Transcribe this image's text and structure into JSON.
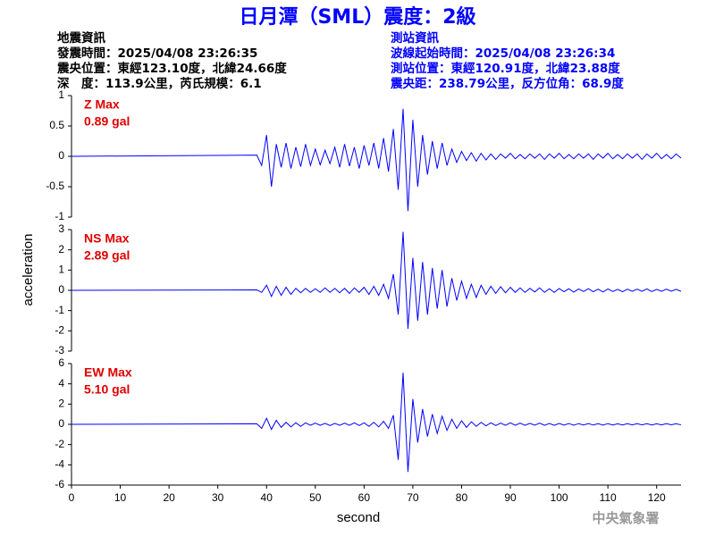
{
  "header": {
    "title": "日月潭（SML）震度：2級",
    "left": [
      "地震資訊",
      "發震時間：2025/04/08 23:26:35",
      "震央位置：東經123.10度，北緯24.66度",
      "深　度：113.9公里，芮氏規模：6.1"
    ],
    "right": [
      "測站資訊",
      "波線起始時間：2025/04/08 23:26:34",
      "測站位置：東經120.91度，北緯23.88度",
      "震央距：238.79公里，反方位角：68.9度"
    ]
  },
  "footer": "中央氣象署",
  "chart_data": [
    {
      "type": "line",
      "annotations": [
        "Z Max",
        "0.89 gal"
      ],
      "color": "#0000ff",
      "xlim": [
        0,
        125
      ],
      "ylim": [
        -1,
        1
      ],
      "yticks": [
        -1,
        -0.5,
        0,
        0.5,
        1
      ],
      "x": [
        0,
        38,
        39,
        40,
        41,
        42,
        43,
        44,
        45,
        46,
        47,
        48,
        49,
        50,
        51,
        52,
        53,
        54,
        55,
        56,
        57,
        58,
        59,
        60,
        61,
        62,
        63,
        64,
        65,
        66,
        67,
        68,
        69,
        70,
        71,
        72,
        73,
        74,
        75,
        76,
        77,
        78,
        79,
        80,
        81,
        82,
        83,
        84,
        85,
        86,
        87,
        88,
        89,
        90,
        91,
        92,
        93,
        94,
        95,
        96,
        97,
        98,
        99,
        100,
        101,
        102,
        103,
        104,
        105,
        106,
        107,
        108,
        109,
        110,
        111,
        112,
        113,
        114,
        115,
        116,
        117,
        118,
        119,
        120,
        121,
        122,
        123,
        124,
        125
      ],
      "values": [
        0,
        0.02,
        -0.15,
        0.35,
        -0.5,
        0.2,
        -0.18,
        0.22,
        -0.2,
        0.15,
        -0.17,
        0.2,
        -0.15,
        0.12,
        -0.14,
        0.1,
        -0.12,
        0.15,
        -0.18,
        0.2,
        -0.16,
        0.15,
        -0.2,
        0.18,
        -0.15,
        0.22,
        -0.2,
        0.3,
        -0.25,
        0.45,
        -0.55,
        0.78,
        -0.9,
        0.6,
        -0.5,
        0.35,
        -0.3,
        0.25,
        -0.2,
        0.22,
        -0.15,
        0.12,
        -0.1,
        0.08,
        -0.07,
        0.06,
        -0.08,
        0.05,
        -0.06,
        0.04,
        -0.05,
        0.04,
        -0.03,
        0.05,
        -0.04,
        0.03,
        -0.04,
        0.04,
        -0.03,
        0.04,
        -0.05,
        0.04,
        -0.03,
        0.05,
        -0.04,
        0.03,
        -0.04,
        0.04,
        -0.03,
        0.04,
        -0.05,
        0.04,
        -0.03,
        0.05,
        -0.04,
        0.03,
        -0.04,
        0.04,
        -0.03,
        0.04,
        -0.05,
        0.04,
        -0.03,
        0.05,
        -0.04,
        0.03,
        -0.04,
        0.04,
        -0.03
      ]
    },
    {
      "type": "line",
      "annotations": [
        "NS Max",
        "2.89 gal"
      ],
      "color": "#0000ff",
      "ylabel": "acceleration",
      "xlim": [
        0,
        125
      ],
      "ylim": [
        -3,
        3
      ],
      "yticks": [
        -3,
        -2,
        -1,
        0,
        1,
        2,
        3
      ],
      "x": [
        0,
        38,
        39,
        40,
        41,
        42,
        43,
        44,
        45,
        46,
        47,
        48,
        49,
        50,
        51,
        52,
        53,
        54,
        55,
        56,
        57,
        58,
        59,
        60,
        61,
        62,
        63,
        64,
        65,
        66,
        67,
        68,
        69,
        70,
        71,
        72,
        73,
        74,
        75,
        76,
        77,
        78,
        79,
        80,
        81,
        82,
        83,
        84,
        85,
        86,
        87,
        88,
        89,
        90,
        91,
        92,
        93,
        94,
        95,
        96,
        97,
        98,
        99,
        100,
        101,
        102,
        103,
        104,
        105,
        106,
        107,
        108,
        109,
        110,
        111,
        112,
        113,
        114,
        115,
        116,
        117,
        118,
        119,
        120,
        121,
        122,
        123,
        124,
        125
      ],
      "values": [
        0,
        0.02,
        -0.1,
        0.25,
        -0.3,
        0.2,
        -0.25,
        0.15,
        -0.2,
        0.1,
        -0.12,
        0.1,
        -0.1,
        0.08,
        -0.1,
        0.12,
        -0.1,
        0.1,
        -0.12,
        0.1,
        -0.15,
        0.12,
        -0.1,
        0.15,
        -0.2,
        0.2,
        -0.25,
        0.3,
        -0.4,
        0.8,
        -1.2,
        2.89,
        -1.9,
        1.6,
        -1.5,
        1.4,
        -1.2,
        1.1,
        -0.9,
        1.0,
        -0.8,
        0.6,
        -0.5,
        0.45,
        -0.4,
        0.3,
        -0.35,
        0.25,
        -0.2,
        0.2,
        -0.15,
        0.18,
        -0.12,
        0.15,
        -0.1,
        0.12,
        -0.1,
        0.1,
        -0.08,
        0.12,
        -0.1,
        0.08,
        -0.1,
        0.09,
        -0.07,
        0.08,
        -0.09,
        0.07,
        -0.06,
        0.08,
        -0.07,
        0.06,
        -0.08,
        0.07,
        -0.06,
        0.05,
        -0.07,
        0.06,
        -0.05,
        0.06,
        -0.05,
        0.07,
        -0.06,
        0.05,
        -0.05,
        0.06,
        -0.04,
        0.05,
        -0.05
      ]
    },
    {
      "type": "line",
      "annotations": [
        "EW Max",
        "5.10 gal"
      ],
      "color": "#0000ff",
      "xlabel": "second",
      "xlim": [
        0,
        125
      ],
      "xticks": [
        0,
        10,
        20,
        30,
        40,
        50,
        60,
        70,
        80,
        90,
        100,
        110,
        120
      ],
      "ylim": [
        -6,
        6
      ],
      "yticks": [
        -6,
        -4,
        -2,
        0,
        2,
        4,
        6
      ],
      "x": [
        0,
        38,
        39,
        40,
        41,
        42,
        43,
        44,
        45,
        46,
        47,
        48,
        49,
        50,
        51,
        52,
        53,
        54,
        55,
        56,
        57,
        58,
        59,
        60,
        61,
        62,
        63,
        64,
        65,
        66,
        67,
        68,
        69,
        70,
        71,
        72,
        73,
        74,
        75,
        76,
        77,
        78,
        79,
        80,
        81,
        82,
        83,
        84,
        85,
        86,
        87,
        88,
        89,
        90,
        91,
        92,
        93,
        94,
        95,
        96,
        97,
        98,
        99,
        100,
        101,
        102,
        103,
        104,
        105,
        106,
        107,
        108,
        109,
        110,
        111,
        112,
        113,
        114,
        115,
        116,
        117,
        118,
        119,
        120,
        121,
        122,
        123,
        124,
        125
      ],
      "values": [
        0,
        0.05,
        -0.4,
        0.6,
        -0.5,
        0.4,
        -0.3,
        0.2,
        -0.25,
        0.15,
        -0.2,
        0.15,
        -0.1,
        0.12,
        -0.1,
        0.1,
        -0.12,
        0.1,
        -0.1,
        0.12,
        -0.1,
        0.15,
        -0.12,
        0.15,
        -0.2,
        0.2,
        -0.25,
        0.3,
        -0.4,
        0.9,
        -3.5,
        5.1,
        -4.7,
        2.5,
        -1.8,
        1.5,
        -1.2,
        1.0,
        -0.9,
        0.8,
        -0.6,
        0.5,
        -0.4,
        0.35,
        -0.3,
        0.25,
        -0.2,
        0.2,
        -0.15,
        0.15,
        -0.12,
        0.12,
        -0.1,
        0.15,
        -0.1,
        0.12,
        -0.1,
        0.1,
        -0.08,
        0.12,
        -0.1,
        0.08,
        -0.1,
        0.09,
        -0.07,
        0.08,
        -0.09,
        0.07,
        -0.06,
        0.08,
        -0.07,
        0.06,
        -0.08,
        0.07,
        -0.06,
        0.05,
        -0.07,
        0.06,
        -0.05,
        0.06,
        -0.05,
        0.07,
        -0.06,
        0.05,
        -0.05,
        0.06,
        -0.04,
        0.05,
        -0.05
      ]
    }
  ]
}
